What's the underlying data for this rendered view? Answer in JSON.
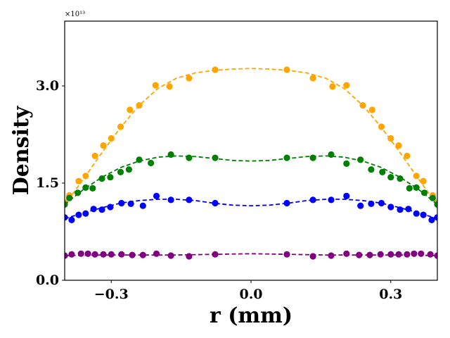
{
  "chart_data": {
    "type": "scatter",
    "title": "",
    "xlabel": "r (mm)",
    "ylabel": "Density",
    "xlim": [
      -0.4,
      0.4
    ],
    "ylim": [
      0.0,
      4.0
    ],
    "y_scale_label": "×10¹³",
    "x_ticks": [
      -0.3,
      0.0,
      0.3
    ],
    "x_tick_labels": [
      "−0.3",
      "0.0",
      "0.3"
    ],
    "y_ticks": [
      0.0,
      1.5,
      3.0
    ],
    "y_tick_labels": [
      "0.0",
      "1.5",
      "3.0"
    ],
    "grid": false,
    "legend": "none",
    "series": [
      {
        "name": "orange",
        "color": "#FFA500",
        "points": [
          [
            -0.4,
            1.2
          ],
          [
            -0.39,
            1.31
          ],
          [
            -0.37,
            1.53
          ],
          [
            -0.355,
            1.61
          ],
          [
            -0.335,
            1.92
          ],
          [
            -0.317,
            2.08
          ],
          [
            -0.3,
            2.19
          ],
          [
            -0.28,
            2.37
          ],
          [
            -0.26,
            2.63
          ],
          [
            -0.24,
            2.7
          ],
          [
            -0.205,
            3.01
          ],
          [
            -0.175,
            2.99
          ],
          [
            -0.133,
            3.12
          ],
          [
            -0.077,
            3.25
          ],
          [
            0.077,
            3.25
          ],
          [
            0.133,
            3.12
          ],
          [
            0.175,
            2.99
          ],
          [
            0.205,
            3.01
          ],
          [
            0.24,
            2.7
          ],
          [
            0.26,
            2.63
          ],
          [
            0.28,
            2.37
          ],
          [
            0.3,
            2.19
          ],
          [
            0.317,
            2.08
          ],
          [
            0.335,
            1.92
          ],
          [
            0.355,
            1.61
          ],
          [
            0.37,
            1.53
          ],
          [
            0.39,
            1.31
          ],
          [
            0.4,
            1.2
          ]
        ],
        "fit": [
          [
            -0.4,
            1.16
          ],
          [
            -0.36,
            1.56
          ],
          [
            -0.32,
            1.97
          ],
          [
            -0.28,
            2.36
          ],
          [
            -0.24,
            2.7
          ],
          [
            -0.2,
            2.96
          ],
          [
            -0.16,
            3.12
          ],
          [
            -0.12,
            3.2
          ],
          [
            -0.08,
            3.24
          ],
          [
            -0.04,
            3.26
          ],
          [
            0.0,
            3.27
          ],
          [
            0.04,
            3.26
          ],
          [
            0.08,
            3.24
          ],
          [
            0.12,
            3.2
          ],
          [
            0.16,
            3.12
          ],
          [
            0.2,
            2.96
          ],
          [
            0.24,
            2.7
          ],
          [
            0.28,
            2.36
          ],
          [
            0.32,
            1.97
          ],
          [
            0.36,
            1.56
          ],
          [
            0.4,
            1.16
          ]
        ]
      },
      {
        "name": "green",
        "color": "#008000",
        "points": [
          [
            -0.4,
            1.17
          ],
          [
            -0.39,
            1.27
          ],
          [
            -0.372,
            1.35
          ],
          [
            -0.355,
            1.43
          ],
          [
            -0.34,
            1.42
          ],
          [
            -0.32,
            1.57
          ],
          [
            -0.302,
            1.59
          ],
          [
            -0.28,
            1.67
          ],
          [
            -0.262,
            1.71
          ],
          [
            -0.24,
            1.86
          ],
          [
            -0.215,
            1.81
          ],
          [
            -0.172,
            1.94
          ],
          [
            -0.133,
            1.89
          ],
          [
            -0.077,
            1.89
          ],
          [
            0.077,
            1.89
          ],
          [
            0.133,
            1.89
          ],
          [
            0.172,
            1.94
          ],
          [
            0.205,
            1.8
          ],
          [
            0.235,
            1.86
          ],
          [
            0.258,
            1.71
          ],
          [
            0.282,
            1.67
          ],
          [
            0.3,
            1.59
          ],
          [
            0.32,
            1.57
          ],
          [
            0.34,
            1.42
          ],
          [
            0.355,
            1.43
          ],
          [
            0.372,
            1.35
          ],
          [
            0.39,
            1.27
          ],
          [
            0.4,
            1.17
          ]
        ],
        "fit": [
          [
            -0.4,
            1.17
          ],
          [
            -0.36,
            1.4
          ],
          [
            -0.32,
            1.59
          ],
          [
            -0.28,
            1.74
          ],
          [
            -0.24,
            1.84
          ],
          [
            -0.2,
            1.9
          ],
          [
            -0.16,
            1.92
          ],
          [
            -0.12,
            1.91
          ],
          [
            -0.08,
            1.88
          ],
          [
            -0.04,
            1.85
          ],
          [
            0.0,
            1.84
          ],
          [
            0.04,
            1.85
          ],
          [
            0.08,
            1.88
          ],
          [
            0.12,
            1.91
          ],
          [
            0.16,
            1.92
          ],
          [
            0.2,
            1.9
          ],
          [
            0.24,
            1.84
          ],
          [
            0.28,
            1.74
          ],
          [
            0.32,
            1.59
          ],
          [
            0.36,
            1.4
          ],
          [
            0.4,
            1.17
          ]
        ]
      },
      {
        "name": "blue",
        "color": "#0000FF",
        "points": [
          [
            -0.4,
            0.97
          ],
          [
            -0.385,
            0.93
          ],
          [
            -0.37,
            1.01
          ],
          [
            -0.355,
            1.03
          ],
          [
            -0.338,
            1.1
          ],
          [
            -0.32,
            1.09
          ],
          [
            -0.302,
            1.13
          ],
          [
            -0.278,
            1.19
          ],
          [
            -0.258,
            1.18
          ],
          [
            -0.232,
            1.15
          ],
          [
            -0.203,
            1.3
          ],
          [
            -0.172,
            1.24
          ],
          [
            -0.133,
            1.24
          ],
          [
            -0.077,
            1.19
          ],
          [
            0.077,
            1.19
          ],
          [
            0.133,
            1.24
          ],
          [
            0.172,
            1.24
          ],
          [
            0.205,
            1.3
          ],
          [
            0.235,
            1.15
          ],
          [
            0.258,
            1.18
          ],
          [
            0.28,
            1.19
          ],
          [
            0.3,
            1.13
          ],
          [
            0.32,
            1.09
          ],
          [
            0.338,
            1.1
          ],
          [
            0.355,
            1.03
          ],
          [
            0.37,
            1.01
          ],
          [
            0.388,
            0.93
          ],
          [
            0.4,
            0.97
          ]
        ],
        "fit": [
          [
            -0.4,
            0.95
          ],
          [
            -0.36,
            1.04
          ],
          [
            -0.32,
            1.12
          ],
          [
            -0.28,
            1.19
          ],
          [
            -0.24,
            1.23
          ],
          [
            -0.2,
            1.25
          ],
          [
            -0.16,
            1.25
          ],
          [
            -0.12,
            1.23
          ],
          [
            -0.08,
            1.19
          ],
          [
            -0.04,
            1.16
          ],
          [
            0.0,
            1.15
          ],
          [
            0.04,
            1.16
          ],
          [
            0.08,
            1.19
          ],
          [
            0.12,
            1.23
          ],
          [
            0.16,
            1.25
          ],
          [
            0.2,
            1.25
          ],
          [
            0.24,
            1.23
          ],
          [
            0.28,
            1.19
          ],
          [
            0.32,
            1.12
          ],
          [
            0.36,
            1.04
          ],
          [
            0.4,
            0.95
          ]
        ]
      },
      {
        "name": "purple",
        "color": "#800080",
        "points": [
          [
            -0.4,
            0.38
          ],
          [
            -0.385,
            0.4
          ],
          [
            -0.365,
            0.41
          ],
          [
            -0.35,
            0.41
          ],
          [
            -0.335,
            0.4
          ],
          [
            -0.317,
            0.4
          ],
          [
            -0.3,
            0.4
          ],
          [
            -0.278,
            0.4
          ],
          [
            -0.255,
            0.39
          ],
          [
            -0.232,
            0.39
          ],
          [
            -0.203,
            0.41
          ],
          [
            -0.172,
            0.38
          ],
          [
            -0.133,
            0.37
          ],
          [
            -0.077,
            0.4
          ],
          [
            0.077,
            0.4
          ],
          [
            0.133,
            0.37
          ],
          [
            0.172,
            0.38
          ],
          [
            0.205,
            0.41
          ],
          [
            0.232,
            0.39
          ],
          [
            0.255,
            0.39
          ],
          [
            0.278,
            0.4
          ],
          [
            0.3,
            0.4
          ],
          [
            0.317,
            0.4
          ],
          [
            0.335,
            0.4
          ],
          [
            0.35,
            0.41
          ],
          [
            0.365,
            0.41
          ],
          [
            0.385,
            0.4
          ],
          [
            0.4,
            0.38
          ]
        ],
        "fit": [
          [
            -0.4,
            0.38
          ],
          [
            -0.32,
            0.39
          ],
          [
            -0.24,
            0.39
          ],
          [
            -0.16,
            0.39
          ],
          [
            -0.08,
            0.4
          ],
          [
            0.0,
            0.41
          ],
          [
            0.08,
            0.4
          ],
          [
            0.16,
            0.39
          ],
          [
            0.24,
            0.39
          ],
          [
            0.32,
            0.39
          ],
          [
            0.4,
            0.38
          ]
        ]
      }
    ]
  }
}
